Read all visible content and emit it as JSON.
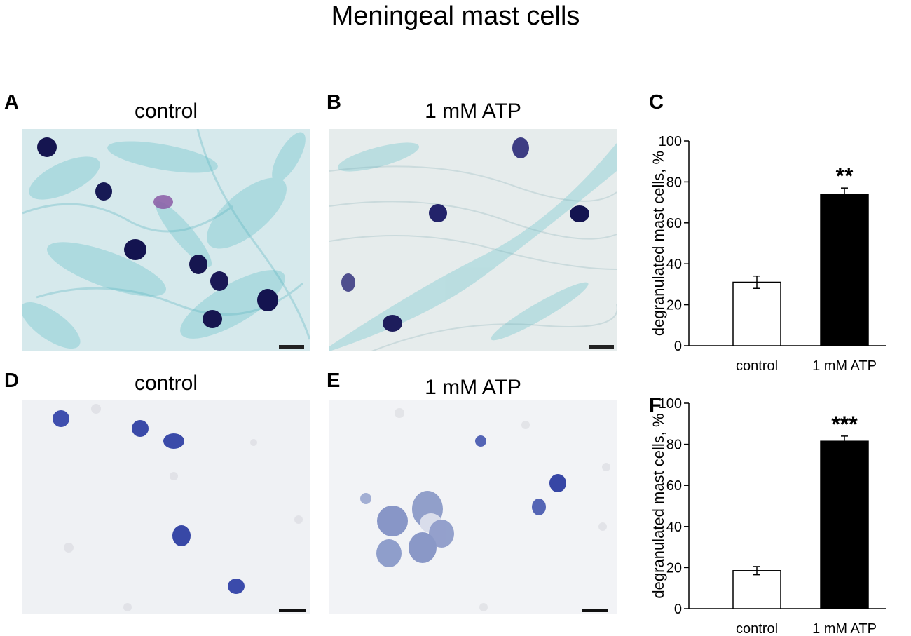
{
  "figure": {
    "title": "Meningeal mast cells"
  },
  "panels": {
    "A": {
      "letter": "A",
      "title": "control"
    },
    "B": {
      "letter": "B",
      "title": "1 mM ATP"
    },
    "C": {
      "letter": "C"
    },
    "D": {
      "letter": "D",
      "title": "control"
    },
    "E": {
      "letter": "E",
      "title": "1 mM ATP"
    },
    "F": {
      "letter": "F"
    }
  },
  "colors": {
    "stain_a_bg": "#cfe6ea",
    "stain_e_bg": "#f2f3f6",
    "mast_cell_dark": "#151550",
    "mast_cell_blue": "#3848a8",
    "bar_control": "#ffffff",
    "bar_atp": "#000000"
  },
  "chart_data": [
    {
      "panel": "C",
      "type": "bar",
      "categories": [
        "control",
        "1 mM ATP"
      ],
      "values": [
        31,
        74
      ],
      "errors": [
        3,
        3
      ],
      "significance": [
        "",
        "**"
      ],
      "ylabel": "degranulated mast cells, %",
      "ylim": [
        0,
        100
      ],
      "yticks": [
        0,
        20,
        40,
        60,
        80,
        100
      ],
      "grid": false
    },
    {
      "panel": "F",
      "type": "bar",
      "categories": [
        "control",
        "1 mM ATP"
      ],
      "values": [
        18.5,
        81.5
      ],
      "errors": [
        2,
        2.5
      ],
      "significance": [
        "",
        "***"
      ],
      "ylabel": "degranulated mast cells, %",
      "ylim": [
        0,
        100
      ],
      "yticks": [
        0,
        20,
        40,
        60,
        80,
        100
      ],
      "grid": false
    }
  ]
}
